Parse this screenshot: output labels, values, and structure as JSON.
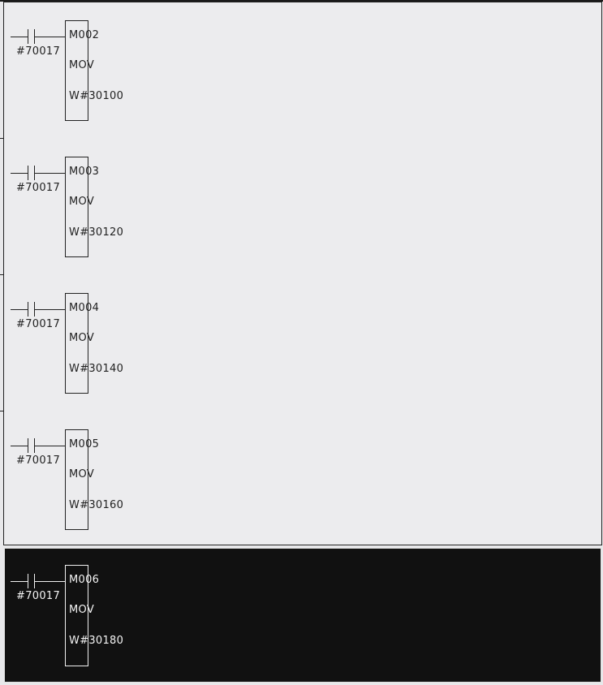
{
  "ladder": {
    "rungs": [
      {
        "contact": "#70017",
        "function_number": "M002",
        "instruction": "MOV",
        "operand": "W#30100",
        "selected": false
      },
      {
        "contact": "#70017",
        "function_number": "M003",
        "instruction": "MOV",
        "operand": "W#30120",
        "selected": false
      },
      {
        "contact": "#70017",
        "function_number": "M004",
        "instruction": "MOV",
        "operand": "W#30140",
        "selected": false
      },
      {
        "contact": "#70017",
        "function_number": "M005",
        "instruction": "MOV",
        "operand": "W#30160",
        "selected": false
      },
      {
        "contact": "#70017",
        "function_number": "M006",
        "instruction": "MOV",
        "operand": "W#30180",
        "selected": true
      }
    ]
  },
  "colors": {
    "background": "#ececee",
    "selected_background": "#111111",
    "line": "#222222",
    "selected_line": "#f0f0f0"
  }
}
